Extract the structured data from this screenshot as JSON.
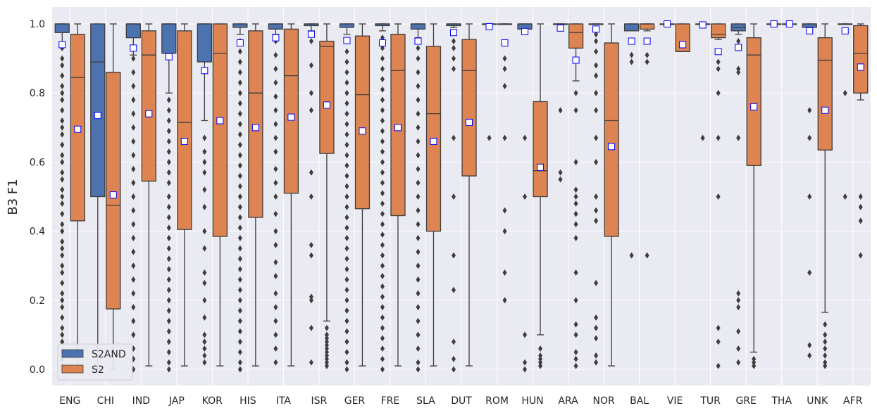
{
  "chart_data": {
    "type": "boxplot",
    "title": "",
    "xlabel": "",
    "ylabel": "B3 F1",
    "ylim": [
      -0.05,
      1.05
    ],
    "yticks": [
      0.0,
      0.2,
      0.4,
      0.6,
      0.8,
      1.0
    ],
    "ytick_labels": [
      "0.0",
      "0.2",
      "0.4",
      "0.6",
      "0.8",
      "1.0"
    ],
    "grid": true,
    "legend_position": "lower-left",
    "mean_marker": "white square, blue edge",
    "categories": [
      "ENG",
      "CHI",
      "IND",
      "JAP",
      "KOR",
      "HIS",
      "ITA",
      "ISR",
      "GER",
      "FRE",
      "SLA",
      "DUT",
      "ROM",
      "HUN",
      "ARA",
      "NOR",
      "BAL",
      "VIE",
      "TUR",
      "GRE",
      "THA",
      "UNK",
      "AFR"
    ],
    "series": [
      {
        "name": "S2AND",
        "color": "#4c72b0",
        "boxes": [
          {
            "q1": 0.975,
            "median": 1.0,
            "q3": 1.0,
            "whislo": 0.94,
            "whishi": 1.0,
            "mean": 0.94,
            "fliers": [
              0.93,
              0.9,
              0.88,
              0.85,
              0.82,
              0.8,
              0.78,
              0.75,
              0.72,
              0.7,
              0.68,
              0.65,
              0.62,
              0.6,
              0.57,
              0.55,
              0.52,
              0.5,
              0.48,
              0.45,
              0.42,
              0.4,
              0.37,
              0.35,
              0.33,
              0.3,
              0.28,
              0.25,
              0.22,
              0.2,
              0.18,
              0.15,
              0.12,
              0.1,
              0.08,
              0.05,
              0.03,
              0.01,
              0.0
            ]
          },
          {
            "q1": 0.5,
            "median": 0.89,
            "q3": 1.0,
            "whislo": 0.0,
            "whishi": 1.0,
            "mean": 0.735,
            "fliers": []
          },
          {
            "q1": 0.96,
            "median": 1.0,
            "q3": 1.0,
            "whislo": 0.91,
            "whishi": 1.0,
            "mean": 0.93,
            "fliers": [
              0.9,
              0.86,
              0.82,
              0.78,
              0.74,
              0.7,
              0.66,
              0.62,
              0.58,
              0.54,
              0.5,
              0.46,
              0.42,
              0.38,
              0.34,
              0.3,
              0.26,
              0.22,
              0.18,
              0.14,
              0.1,
              0.06,
              0.03,
              0.0
            ]
          },
          {
            "q1": 0.915,
            "median": 1.0,
            "q3": 1.0,
            "whislo": 0.8,
            "whishi": 1.0,
            "mean": 0.905,
            "fliers": [
              0.78,
              0.75,
              0.72,
              0.69,
              0.66,
              0.63,
              0.6,
              0.57,
              0.54,
              0.5,
              0.47,
              0.44,
              0.41,
              0.38,
              0.35,
              0.32,
              0.29,
              0.26,
              0.23,
              0.2,
              0.17,
              0.14,
              0.11,
              0.08,
              0.05,
              0.02,
              0.0
            ]
          },
          {
            "q1": 0.89,
            "median": 1.0,
            "q3": 1.0,
            "whislo": 0.72,
            "whishi": 1.0,
            "mean": 0.865,
            "fliers": [
              0.67,
              0.63,
              0.6,
              0.57,
              0.52,
              0.47,
              0.4,
              0.35,
              0.28,
              0.25,
              0.2,
              0.15,
              0.1,
              0.08,
              0.06,
              0.04,
              0.02
            ]
          },
          {
            "q1": 0.99,
            "median": 1.0,
            "q3": 1.0,
            "whislo": 0.97,
            "whishi": 1.0,
            "mean": 0.945,
            "fliers": [
              0.95,
              0.92,
              0.89,
              0.86,
              0.83,
              0.8,
              0.77,
              0.74,
              0.71,
              0.68,
              0.65,
              0.62,
              0.59,
              0.56,
              0.53,
              0.5,
              0.47,
              0.44,
              0.41,
              0.38,
              0.35,
              0.32,
              0.29,
              0.26,
              0.23,
              0.2,
              0.17,
              0.14,
              0.11,
              0.08,
              0.05,
              0.02,
              0.0
            ]
          },
          {
            "q1": 0.985,
            "median": 1.0,
            "q3": 1.0,
            "whislo": 0.97,
            "whishi": 1.0,
            "mean": 0.96,
            "fliers": [
              0.95,
              0.91,
              0.87,
              0.83,
              0.79,
              0.75,
              0.71,
              0.67,
              0.63,
              0.58,
              0.54,
              0.5,
              0.45,
              0.4,
              0.36,
              0.31,
              0.27,
              0.22,
              0.18,
              0.14,
              0.1,
              0.06,
              0.02
            ]
          },
          {
            "q1": 0.995,
            "median": 1.0,
            "q3": 1.0,
            "whislo": 0.98,
            "whishi": 1.0,
            "mean": 0.97,
            "fliers": [
              0.95,
              0.88,
              0.8,
              0.75,
              0.57,
              0.5,
              0.36,
              0.33,
              0.21,
              0.2,
              0.12,
              0.02
            ]
          },
          {
            "q1": 0.99,
            "median": 1.0,
            "q3": 1.0,
            "whislo": 0.97,
            "whishi": 1.0,
            "mean": 0.952,
            "fliers": [
              0.95,
              0.92,
              0.89,
              0.86,
              0.83,
              0.8,
              0.77,
              0.74,
              0.71,
              0.68,
              0.65,
              0.62,
              0.59,
              0.56,
              0.53,
              0.5,
              0.47,
              0.44,
              0.41,
              0.38,
              0.35,
              0.32,
              0.29,
              0.26,
              0.23,
              0.2,
              0.17,
              0.14,
              0.11,
              0.08,
              0.05,
              0.02,
              0.0
            ]
          },
          {
            "q1": 0.995,
            "median": 1.0,
            "q3": 1.0,
            "whislo": 0.98,
            "whishi": 1.0,
            "mean": 0.945,
            "fliers": [
              0.96,
              0.93,
              0.9,
              0.87,
              0.84,
              0.81,
              0.78,
              0.75,
              0.72,
              0.69,
              0.66,
              0.63,
              0.6,
              0.57,
              0.54,
              0.51,
              0.48,
              0.45,
              0.42,
              0.39,
              0.36,
              0.33,
              0.3,
              0.27,
              0.24,
              0.21,
              0.18,
              0.15,
              0.12,
              0.09,
              0.06,
              0.03,
              0.0
            ]
          },
          {
            "q1": 0.985,
            "median": 1.0,
            "q3": 1.0,
            "whislo": 0.96,
            "whishi": 1.0,
            "mean": 0.95,
            "fliers": [
              0.93,
              0.9,
              0.86,
              0.82,
              0.78,
              0.74,
              0.7,
              0.66,
              0.62,
              0.58,
              0.54,
              0.5,
              0.46,
              0.42,
              0.38,
              0.34,
              0.3,
              0.26,
              0.22,
              0.18,
              0.14,
              0.1,
              0.06,
              0.02,
              0.0
            ]
          },
          {
            "q1": 0.995,
            "median": 1.0,
            "q3": 1.0,
            "whislo": 0.99,
            "whishi": 1.0,
            "mean": 0.975,
            "fliers": [
              0.95,
              0.93,
              0.9,
              0.87,
              0.67,
              0.5,
              0.33,
              0.23,
              0.08,
              0.03,
              0.0
            ]
          },
          {
            "q1": 1.0,
            "median": 1.0,
            "q3": 1.0,
            "whislo": 1.0,
            "whishi": 1.0,
            "mean": 0.992,
            "fliers": [
              0.67
            ]
          },
          {
            "q1": 0.985,
            "median": 1.0,
            "q3": 1.0,
            "whislo": 0.97,
            "whishi": 1.0,
            "mean": 0.978,
            "fliers": [
              0.67,
              0.5,
              0.1,
              0.02,
              0.0
            ]
          },
          {
            "q1": 1.0,
            "median": 1.0,
            "q3": 1.0,
            "whislo": 1.0,
            "whishi": 1.0,
            "mean": 0.988,
            "fliers": [
              0.75,
              0.57,
              0.55
            ]
          },
          {
            "q1": 1.0,
            "median": 1.0,
            "q3": 1.0,
            "whislo": 1.0,
            "whishi": 1.0,
            "mean": 0.985,
            "fliers": [
              0.97,
              0.95,
              0.92,
              0.88,
              0.85,
              0.8,
              0.75,
              0.67,
              0.6,
              0.5,
              0.46,
              0.43,
              0.25,
              0.15,
              0.12,
              0.09,
              0.04,
              0.02
            ]
          },
          {
            "q1": 0.98,
            "median": 1.0,
            "q3": 1.0,
            "whislo": 0.98,
            "whishi": 1.0,
            "mean": 0.95,
            "fliers": [
              0.91,
              0.89,
              0.33
            ]
          },
          {
            "q1": 1.0,
            "median": 1.0,
            "q3": 1.0,
            "whislo": 1.0,
            "whishi": 1.0,
            "mean": 1.0,
            "fliers": []
          },
          {
            "q1": 1.0,
            "median": 1.0,
            "q3": 1.0,
            "whislo": 1.0,
            "whishi": 1.0,
            "mean": 0.997,
            "fliers": [
              0.67
            ]
          },
          {
            "q1": 0.98,
            "median": 0.99,
            "q3": 1.0,
            "whislo": 0.97,
            "whishi": 1.0,
            "mean": 0.932,
            "fliers": [
              0.95,
              0.87,
              0.86,
              0.67,
              0.22,
              0.2,
              0.18,
              0.11,
              0.06,
              0.02
            ]
          },
          {
            "q1": 1.0,
            "median": 1.0,
            "q3": 1.0,
            "whislo": 1.0,
            "whishi": 1.0,
            "mean": 1.0,
            "fliers": []
          },
          {
            "q1": 0.99,
            "median": 1.0,
            "q3": 1.0,
            "whislo": 0.98,
            "whishi": 1.0,
            "mean": 0.98,
            "fliers": [
              0.75,
              0.67,
              0.5,
              0.28,
              0.07,
              0.04
            ]
          },
          {
            "q1": 1.0,
            "median": 1.0,
            "q3": 1.0,
            "whislo": 1.0,
            "whishi": 1.0,
            "mean": 0.98,
            "fliers": [
              0.8,
              0.5
            ]
          }
        ]
      },
      {
        "name": "S2",
        "color": "#dd8452",
        "boxes": [
          {
            "q1": 0.43,
            "median": 0.845,
            "q3": 0.97,
            "whislo": 0.0,
            "whishi": 1.0,
            "mean": 0.695,
            "fliers": []
          },
          {
            "q1": 0.175,
            "median": 0.475,
            "q3": 0.86,
            "whislo": 0.0,
            "whishi": 1.0,
            "mean": 0.505,
            "fliers": []
          },
          {
            "q1": 0.545,
            "median": 0.91,
            "q3": 0.98,
            "whislo": 0.01,
            "whishi": 1.0,
            "mean": 0.74,
            "fliers": []
          },
          {
            "q1": 0.405,
            "median": 0.715,
            "q3": 0.98,
            "whislo": 0.01,
            "whishi": 1.0,
            "mean": 0.66,
            "fliers": []
          },
          {
            "q1": 0.385,
            "median": 0.915,
            "q3": 1.0,
            "whislo": 0.01,
            "whishi": 1.0,
            "mean": 0.72,
            "fliers": []
          },
          {
            "q1": 0.44,
            "median": 0.8,
            "q3": 0.98,
            "whislo": 0.01,
            "whishi": 1.0,
            "mean": 0.7,
            "fliers": []
          },
          {
            "q1": 0.51,
            "median": 0.85,
            "q3": 0.985,
            "whislo": 0.01,
            "whishi": 1.0,
            "mean": 0.73,
            "fliers": []
          },
          {
            "q1": 0.625,
            "median": 0.935,
            "q3": 0.95,
            "whislo": 0.14,
            "whishi": 1.0,
            "mean": 0.765,
            "fliers": [
              0.12,
              0.1,
              0.09,
              0.08,
              0.07,
              0.06,
              0.05,
              0.04,
              0.03,
              0.02,
              0.01
            ]
          },
          {
            "q1": 0.465,
            "median": 0.795,
            "q3": 0.965,
            "whislo": 0.01,
            "whishi": 1.0,
            "mean": 0.69,
            "fliers": []
          },
          {
            "q1": 0.445,
            "median": 0.865,
            "q3": 0.97,
            "whislo": 0.01,
            "whishi": 1.0,
            "mean": 0.7,
            "fliers": []
          },
          {
            "q1": 0.4,
            "median": 0.74,
            "q3": 0.935,
            "whislo": 0.01,
            "whishi": 1.0,
            "mean": 0.66,
            "fliers": []
          },
          {
            "q1": 0.56,
            "median": 0.865,
            "q3": 0.955,
            "whislo": 0.01,
            "whishi": 1.0,
            "mean": 0.715,
            "fliers": []
          },
          {
            "q1": 1.0,
            "median": 1.0,
            "q3": 1.0,
            "whislo": 1.0,
            "whishi": 1.0,
            "mean": 0.945,
            "fliers": [
              0.9,
              0.87,
              0.82,
              0.67,
              0.46,
              0.4,
              0.28,
              0.2
            ]
          },
          {
            "q1": 0.5,
            "median": 0.575,
            "q3": 0.775,
            "whislo": 0.1,
            "whishi": 1.0,
            "mean": 0.585,
            "fliers": [
              0.06,
              0.04,
              0.03,
              0.02,
              0.01
            ]
          },
          {
            "q1": 0.93,
            "median": 0.975,
            "q3": 1.0,
            "whislo": 0.835,
            "whishi": 1.0,
            "mean": 0.895,
            "fliers": [
              0.8,
              0.75,
              0.6,
              0.52,
              0.5,
              0.48,
              0.45,
              0.42,
              0.38,
              0.28,
              0.2,
              0.13,
              0.1,
              0.05,
              0.03,
              0.01
            ]
          },
          {
            "q1": 0.385,
            "median": 0.72,
            "q3": 0.945,
            "whislo": 0.01,
            "whishi": 1.0,
            "mean": 0.645,
            "fliers": []
          },
          {
            "q1": 0.985,
            "median": 1.0,
            "q3": 1.0,
            "whislo": 0.98,
            "whishi": 1.0,
            "mean": 0.95,
            "fliers": [
              0.91,
              0.89,
              0.33
            ]
          },
          {
            "q1": 0.92,
            "median": 0.92,
            "q3": 1.0,
            "whislo": 0.92,
            "whishi": 1.0,
            "mean": 0.94,
            "fliers": []
          },
          {
            "q1": 0.96,
            "median": 0.97,
            "q3": 1.0,
            "whislo": 0.955,
            "whishi": 1.0,
            "mean": 0.92,
            "fliers": [
              0.89,
              0.87,
              0.8,
              0.67,
              0.5,
              0.12,
              0.08,
              0.01
            ]
          },
          {
            "q1": 0.59,
            "median": 0.91,
            "q3": 0.96,
            "whislo": 0.05,
            "whishi": 1.0,
            "mean": 0.76,
            "fliers": [
              0.03,
              0.02,
              0.01
            ]
          },
          {
            "q1": 1.0,
            "median": 1.0,
            "q3": 1.0,
            "whislo": 1.0,
            "whishi": 1.0,
            "mean": 1.0,
            "fliers": []
          },
          {
            "q1": 0.635,
            "median": 0.895,
            "q3": 0.96,
            "whislo": 0.165,
            "whishi": 1.0,
            "mean": 0.75,
            "fliers": [
              0.13,
              0.1,
              0.08,
              0.06,
              0.04,
              0.02,
              0.01
            ]
          },
          {
            "q1": 0.8,
            "median": 0.915,
            "q3": 0.995,
            "whislo": 0.78,
            "whishi": 1.0,
            "mean": 0.875,
            "fliers": [
              0.5,
              0.47,
              0.43,
              0.33
            ]
          }
        ]
      }
    ]
  }
}
